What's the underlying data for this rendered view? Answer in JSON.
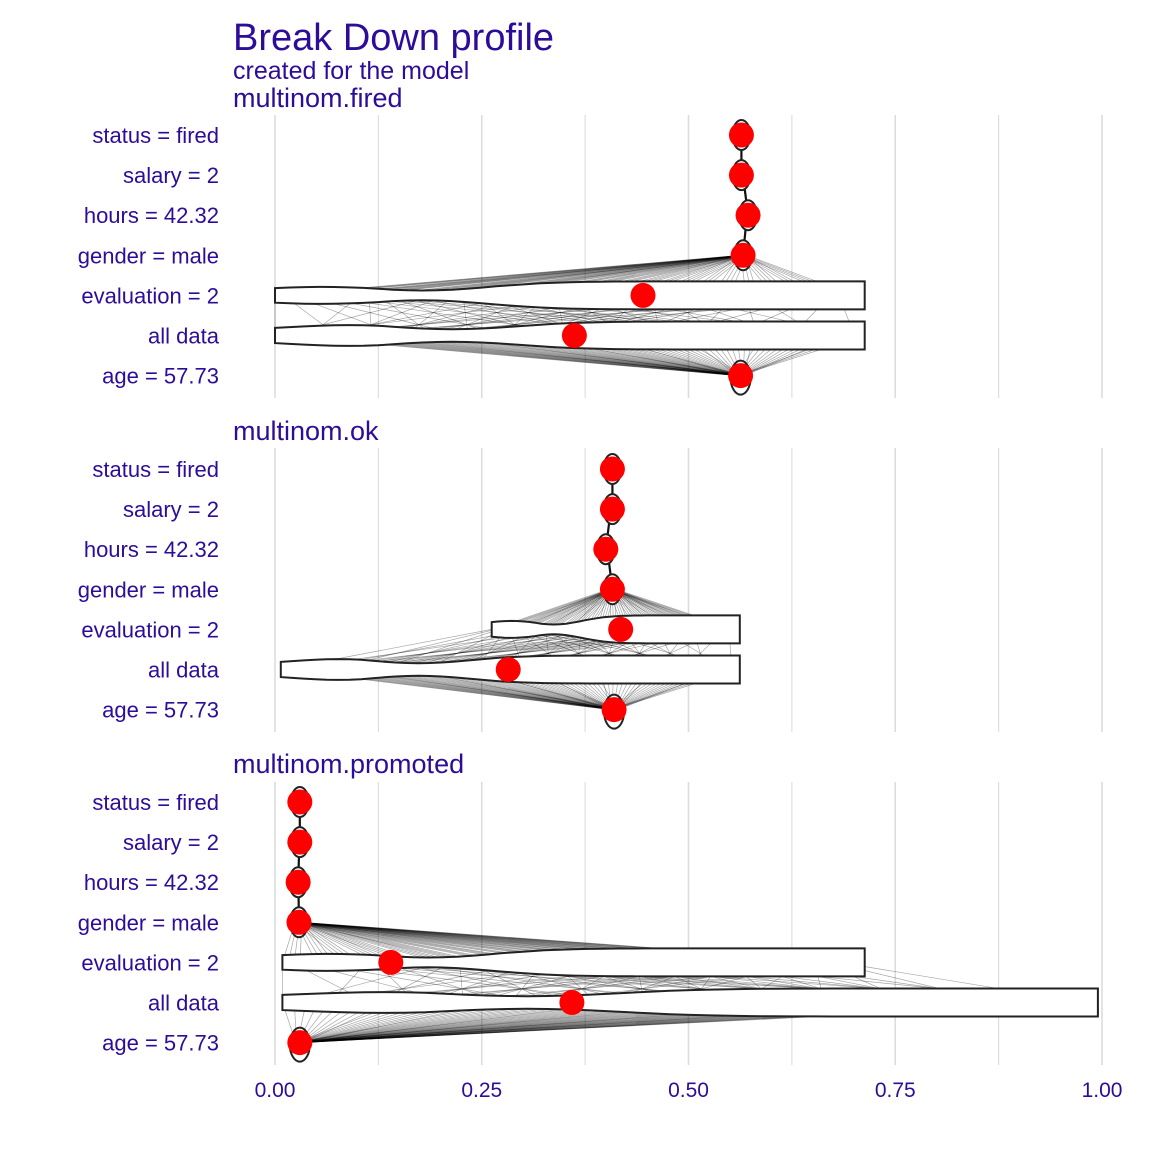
{
  "chart_data": {
    "type": "violin",
    "title": "Break Down profile",
    "subtitle": "created for the  model",
    "x_ticks": [
      "0.00",
      "0.25",
      "0.50",
      "0.75",
      "1.00"
    ],
    "xlim": [
      0,
      1
    ],
    "grid": true,
    "colors": {
      "text": "#2d0c99",
      "point": "#ff0000",
      "grid": "#dcdcdc",
      "violin_stroke": "#222222",
      "link": "#000000"
    },
    "categories": [
      "status = fired",
      "salary = 2",
      "hours = 42.32",
      "gender = male",
      "evaluation = 2",
      "all data",
      "age = 57.73"
    ],
    "panels": [
      {
        "name": "multinom.fired",
        "points": [
          0.564,
          0.564,
          0.572,
          0.566,
          0.445,
          0.362,
          0.563
        ],
        "violins": [
          {
            "min": 0.0,
            "max": 0.713
          },
          {
            "min": 0.0,
            "max": 0.713
          }
        ]
      },
      {
        "name": "multinom.ok",
        "points": [
          0.408,
          0.408,
          0.4,
          0.408,
          0.418,
          0.282,
          0.41
        ],
        "violins": [
          {
            "min": 0.262,
            "max": 0.562
          },
          {
            "min": 0.007,
            "max": 0.562
          }
        ]
      },
      {
        "name": "multinom.promoted",
        "points": [
          0.03,
          0.03,
          0.028,
          0.029,
          0.14,
          0.359,
          0.03
        ],
        "violins": [
          {
            "min": 0.009,
            "max": 0.713
          },
          {
            "min": 0.009,
            "max": 0.995
          }
        ]
      }
    ]
  }
}
